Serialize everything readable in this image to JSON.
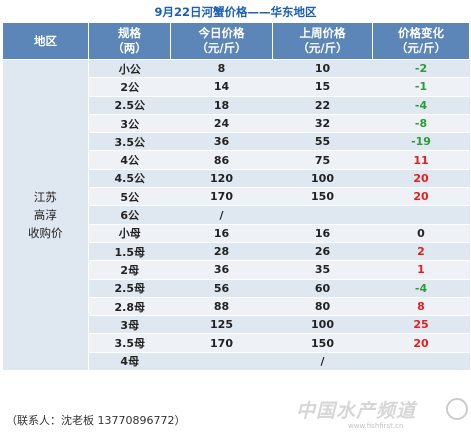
{
  "title": "9月22日河蟹价格——华东地区",
  "headers": [
    "地区",
    "规格\n（两）",
    "今日价格\n（元/斤）",
    "上周价格\n（元/斤）",
    "价格变化\n（元/斤）"
  ],
  "region": "江苏\n高淳\n收购价",
  "rows": [
    {
      "spec": "小公",
      "today": "8",
      "last": "10",
      "change": "-2",
      "trend": "neg"
    },
    {
      "spec": "2公",
      "today": "14",
      "last": "15",
      "change": "-1",
      "trend": "neg"
    },
    {
      "spec": "2.5公",
      "today": "18",
      "last": "22",
      "change": "-4",
      "trend": "neg"
    },
    {
      "spec": "3公",
      "today": "24",
      "last": "32",
      "change": "-8",
      "trend": "neg"
    },
    {
      "spec": "3.5公",
      "today": "36",
      "last": "55",
      "change": "-19",
      "trend": "neg"
    },
    {
      "spec": "4公",
      "today": "86",
      "last": "75",
      "change": "11",
      "trend": "pos"
    },
    {
      "spec": "4.5公",
      "today": "120",
      "last": "100",
      "change": "20",
      "trend": "pos"
    },
    {
      "spec": "5公",
      "today": "170",
      "last": "150",
      "change": "20",
      "trend": "pos"
    },
    {
      "spec": "6公",
      "today": "/",
      "last": "",
      "change": "",
      "trend": "zero"
    },
    {
      "spec": "小母",
      "today": "16",
      "last": "16",
      "change": "0",
      "trend": "zero"
    },
    {
      "spec": "1.5母",
      "today": "28",
      "last": "26",
      "change": "2",
      "trend": "pos"
    },
    {
      "spec": "2母",
      "today": "36",
      "last": "35",
      "change": "1",
      "trend": "pos"
    },
    {
      "spec": "2.5母",
      "today": "56",
      "last": "60",
      "change": "-4",
      "trend": "neg"
    },
    {
      "spec": "2.8母",
      "today": "88",
      "last": "80",
      "change": "8",
      "trend": "pos"
    },
    {
      "spec": "3母",
      "today": "125",
      "last": "100",
      "change": "25",
      "trend": "pos"
    },
    {
      "spec": "3.5母",
      "today": "170",
      "last": "150",
      "change": "20",
      "trend": "pos"
    },
    {
      "spec": "4母",
      "today": "",
      "last": "/",
      "change": "",
      "trend": "zero"
    }
  ],
  "contact": "（联系人：沈老板 13770896772）",
  "watermark": "中国水产频道",
  "watermark_url": "www.fishfirst.cn",
  "colors": {
    "header_bg": "#5b86b7",
    "title": "#1a5fb5",
    "positive": "#e02020",
    "negative": "#2e9a3a"
  }
}
